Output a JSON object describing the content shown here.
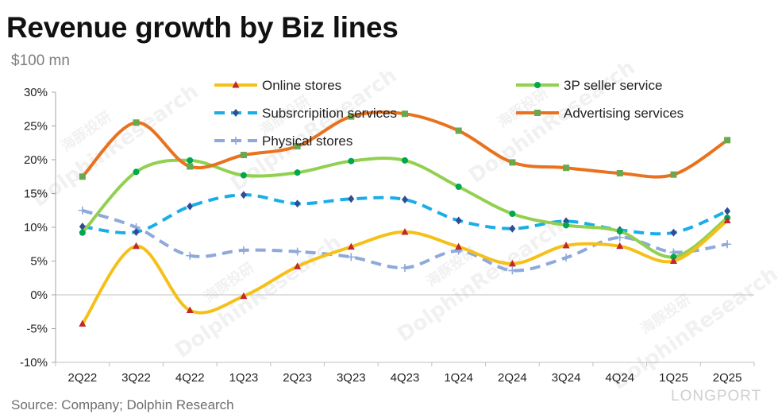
{
  "title": "Revenue growth by Biz lines",
  "unit": "$100 mn",
  "source": "Source: Company; Dolphin Research",
  "chart_data": {
    "type": "line",
    "title": "Revenue growth by Biz lines",
    "ylim": [
      -10,
      30
    ],
    "yticks": [
      -10,
      -5,
      0,
      5,
      10,
      15,
      20,
      25,
      30
    ],
    "ytick_labels": [
      "-10%",
      "-5%",
      "0%",
      "5%",
      "10%",
      "15%",
      "20%",
      "25%",
      "30%"
    ],
    "categories": [
      "2Q22",
      "3Q22",
      "4Q22",
      "1Q23",
      "2Q23",
      "3Q23",
      "4Q23",
      "1Q24",
      "2Q24",
      "3Q24",
      "4Q24",
      "1Q25",
      "2Q25"
    ],
    "grid": false,
    "legend": "top",
    "series": [
      {
        "name": "Online stores",
        "color": "#F5C019",
        "marker": "triangle",
        "marker_color": "#C0282D",
        "dash": "solid",
        "values": [
          -4.3,
          7.2,
          -2.3,
          -0.2,
          4.2,
          7.1,
          9.3,
          7.1,
          4.6,
          7.3,
          7.2,
          5.0,
          11.0
        ]
      },
      {
        "name": "3P seller service",
        "color": "#92D050",
        "marker": "circle",
        "marker_color": "#00A650",
        "dash": "solid",
        "values": [
          9.2,
          18.2,
          19.9,
          17.7,
          18.1,
          19.8,
          19.9,
          16.0,
          12.0,
          10.3,
          9.4,
          5.6,
          11.4
        ]
      },
      {
        "name": "Subsrcripition services",
        "color": "#1AAEE8",
        "marker": "diamond",
        "marker_color": "#2E4D94",
        "dash": "dashed",
        "values": [
          10.1,
          9.3,
          13.1,
          14.8,
          13.5,
          14.2,
          14.1,
          11.0,
          9.8,
          10.9,
          9.6,
          9.2,
          12.4
        ]
      },
      {
        "name": "Advertising services",
        "color": "#E8721E",
        "marker": "square",
        "marker_color": "#6AA84F",
        "dash": "solid",
        "values": [
          17.5,
          25.5,
          19.0,
          20.7,
          22.0,
          26.4,
          26.8,
          24.3,
          19.6,
          18.8,
          18.0,
          17.8,
          22.9
        ]
      },
      {
        "name": "Physical stores",
        "color": "#8EA9DB",
        "marker": "plus",
        "marker_color": "#8EA9DB",
        "dash": "dashed",
        "values": [
          12.5,
          10.0,
          5.8,
          6.6,
          6.4,
          5.6,
          4.0,
          6.5,
          3.6,
          5.5,
          8.5,
          6.3,
          7.5
        ]
      }
    ]
  },
  "watermarks": {
    "brand": "LONGPORT",
    "text": "DolphinResearch",
    "cn": "海豚投研"
  }
}
